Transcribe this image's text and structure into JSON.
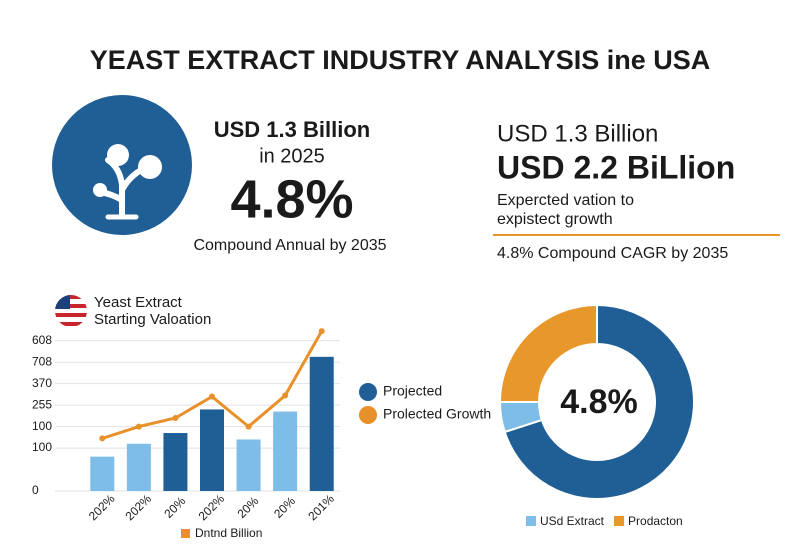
{
  "title": "YEAST EXTRACT INDUSTRY ANALYSIS ine USA",
  "left_stat": {
    "line1": "USD 1.3 Billion",
    "line2": "in 2025",
    "big": "4.8%",
    "caption": "Compound Annual by 2035"
  },
  "right_stat": {
    "line1": "USD 1.3 Billion",
    "line2": "USD 2.2 BiLlion",
    "caption_lines": [
      "Expercted vation to",
      "expistect growth"
    ],
    "footer": "4.8% Compound CAGR by 2035"
  },
  "chart_data": [
    {
      "type": "bar",
      "title_lines": [
        "Yeast Extract",
        "Starting Valoation"
      ],
      "categories": [
        "202%",
        "202%",
        "20%",
        "202%",
        "20%",
        "20%",
        "201%"
      ],
      "x_label": "Dntnd Billion",
      "x_label_color": "#e8902a",
      "series": [
        {
          "name": "Projected",
          "color": "#1f5f96",
          "colors": [
            "#7dbde8",
            "#7dbde8",
            "#1f5f96",
            "#1f5f96",
            "#7dbde8",
            "#7dbde8",
            "#1f5f96"
          ],
          "values": [
            1.6,
            2.2,
            2.7,
            3.8,
            2.4,
            3.7,
            6.25
          ]
        },
        {
          "name": "Prolected Growth",
          "color": "#e8902a",
          "values": [
            2.45,
            3.0,
            3.4,
            4.4,
            3.0,
            4.45,
            7.45
          ]
        }
      ],
      "ylim": [
        0,
        7.5
      ],
      "yticks": [
        0,
        {
          "value": 2,
          "label": "100"
        },
        {
          "value": 3,
          "label": "100"
        },
        {
          "value": 4,
          "label": "255"
        },
        {
          "value": 5,
          "label": "370"
        },
        {
          "value": 6,
          "label": "708"
        },
        {
          "value": 7,
          "label": "608"
        }
      ],
      "grid": true
    },
    {
      "type": "pie",
      "donut": true,
      "center_label": "4.8%",
      "categories": [
        null,
        "USd Extract",
        "Prodacton"
      ],
      "values": [
        70,
        5,
        25
      ],
      "colors": [
        "#1f5f96",
        "#7dbde8",
        "#e8982a"
      ]
    }
  ]
}
